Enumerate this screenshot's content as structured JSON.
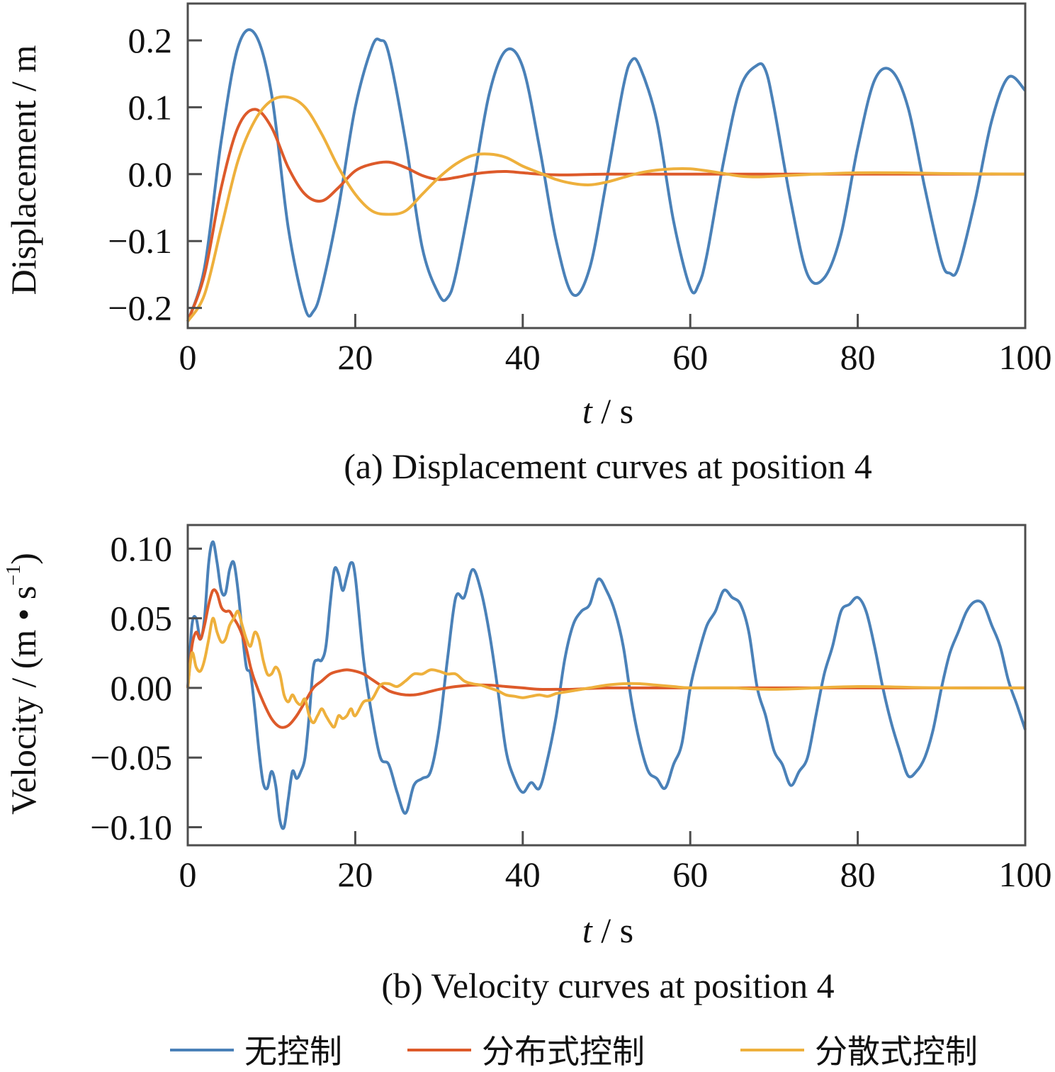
{
  "colors": {
    "no_control": "#4a81b8",
    "distributed": "#dd5a2a",
    "decentralized": "#eeb03c",
    "axis": "#4d4d4d"
  },
  "legend": [
    {
      "key": "no_control",
      "label": "无控制"
    },
    {
      "key": "distributed",
      "label": "分布式控制"
    },
    {
      "key": "decentralized",
      "label": "分散式控制"
    }
  ],
  "chart_data": [
    {
      "id": "a",
      "type": "line",
      "caption": "(a)  Displacement curves at position 4",
      "xlabel_var": "t",
      "xlabel_unit": " / s",
      "ylabel": "Displacement / m",
      "xlim": [
        0,
        100
      ],
      "ylim": [
        -0.23,
        0.255
      ],
      "xticks": [
        0,
        20,
        40,
        60,
        80,
        100
      ],
      "xtick_labels": [
        "0",
        "20",
        "40",
        "60",
        "80",
        "100"
      ],
      "yticks": [
        -0.2,
        -0.1,
        0.0,
        0.1,
        0.2
      ],
      "ytick_labels": [
        "−0.2",
        "−0.1",
        "0.0",
        "0.1",
        "0.2"
      ],
      "grid": false,
      "series": [
        {
          "key": "no_control",
          "x": [
            0,
            2,
            4,
            6,
            8,
            10,
            12,
            14,
            15,
            16,
            18,
            20,
            22,
            23,
            24,
            26,
            28,
            30,
            31,
            32,
            34,
            36,
            38,
            40,
            42,
            44,
            46,
            48,
            50,
            52,
            53,
            54,
            56,
            58,
            60,
            61,
            62,
            64,
            66,
            68,
            69,
            70,
            72,
            74,
            76,
            78,
            80,
            82,
            84,
            86,
            88,
            90,
            91,
            92,
            94,
            96,
            98,
            100
          ],
          "y": [
            -0.22,
            -0.14,
            0.05,
            0.19,
            0.21,
            0.12,
            -0.08,
            -0.2,
            -0.205,
            -0.17,
            -0.05,
            0.1,
            0.19,
            0.2,
            0.18,
            0.05,
            -0.11,
            -0.18,
            -0.185,
            -0.15,
            -0.02,
            0.12,
            0.185,
            0.16,
            0.04,
            -0.1,
            -0.18,
            -0.14,
            -0.01,
            0.13,
            0.17,
            0.16,
            0.08,
            -0.07,
            -0.17,
            -0.165,
            -0.12,
            0.02,
            0.13,
            0.163,
            0.155,
            0.1,
            -0.04,
            -0.15,
            -0.155,
            -0.09,
            0.04,
            0.14,
            0.155,
            0.1,
            -0.02,
            -0.13,
            -0.148,
            -0.14,
            -0.04,
            0.08,
            0.145,
            0.125
          ]
        },
        {
          "key": "distributed",
          "x": [
            0,
            2,
            4,
            6,
            8,
            10,
            12,
            14,
            16,
            18,
            20,
            22,
            24,
            26,
            28,
            30,
            32,
            34,
            36,
            38,
            40,
            42,
            44,
            46,
            50,
            60,
            70,
            80,
            90,
            100
          ],
          "y": [
            -0.22,
            -0.15,
            -0.02,
            0.07,
            0.097,
            0.07,
            0.01,
            -0.03,
            -0.04,
            -0.02,
            0.005,
            0.015,
            0.018,
            0.01,
            -0.002,
            -0.008,
            -0.005,
            0,
            0.003,
            0.004,
            0.002,
            0,
            -0.001,
            -0.001,
            0,
            0,
            0,
            0,
            0,
            0
          ]
        },
        {
          "key": "decentralized",
          "x": [
            0,
            2,
            4,
            6,
            8,
            10,
            12,
            14,
            16,
            18,
            20,
            22,
            24,
            26,
            28,
            30,
            32,
            34,
            36,
            38,
            40,
            42,
            44,
            46,
            48,
            50,
            52,
            54,
            56,
            58,
            60,
            62,
            64,
            66,
            68,
            70,
            75,
            80,
            85,
            90,
            100
          ],
          "y": [
            -0.22,
            -0.18,
            -0.08,
            0.02,
            0.08,
            0.11,
            0.115,
            0.1,
            0.06,
            0.01,
            -0.03,
            -0.055,
            -0.06,
            -0.055,
            -0.03,
            -0.005,
            0.015,
            0.028,
            0.03,
            0.025,
            0.012,
            0.002,
            -0.008,
            -0.014,
            -0.016,
            -0.012,
            -0.005,
            0.002,
            0.006,
            0.008,
            0.008,
            0.005,
            0.001,
            -0.003,
            -0.004,
            -0.003,
            0,
            0.002,
            0.002,
            0.001,
            0
          ]
        }
      ]
    },
    {
      "id": "b",
      "type": "line",
      "caption": "(b)  Velocity curves at position 4",
      "xlabel_var": "t",
      "xlabel_unit": " / s",
      "ylabel_main": "Velocity / (m • s",
      "ylabel_sup": "−1",
      "ylabel_close": ")",
      "xlim": [
        0,
        100
      ],
      "ylim": [
        -0.113,
        0.117
      ],
      "xticks": [
        0,
        20,
        40,
        60,
        80,
        100
      ],
      "xtick_labels": [
        "0",
        "20",
        "40",
        "60",
        "80",
        "100"
      ],
      "yticks": [
        -0.1,
        -0.05,
        0.0,
        0.05,
        0.1
      ],
      "ytick_labels": [
        "−0.10",
        "−0.05",
        "0.00",
        "0.05",
        "0.10"
      ],
      "grid": false,
      "series": [
        {
          "key": "no_control",
          "x": [
            0,
            0.5,
            1,
            1.5,
            2,
            2.5,
            3,
            3.5,
            4,
            4.5,
            5,
            5.5,
            6,
            6.5,
            7,
            7.5,
            8,
            8.5,
            9,
            9.5,
            10,
            10.5,
            11,
            11.5,
            12,
            12.5,
            13,
            13.5,
            14,
            14.5,
            15,
            15.5,
            16,
            16.5,
            17,
            17.5,
            18,
            18.5,
            19,
            19.5,
            20,
            21,
            22,
            23,
            24,
            25,
            26,
            27,
            28,
            29,
            30,
            31,
            32,
            33,
            34,
            35,
            36,
            37,
            38,
            39,
            40,
            41,
            42,
            43,
            44,
            45,
            46,
            47,
            48,
            49,
            50,
            51,
            52,
            53,
            54,
            55,
            56,
            57,
            58,
            59,
            60,
            61,
            62,
            63,
            64,
            65,
            66,
            67,
            68,
            69,
            70,
            71,
            72,
            73,
            74,
            75,
            76,
            77,
            78,
            79,
            80,
            81,
            82,
            83,
            84,
            85,
            86,
            87,
            88,
            89,
            90,
            91,
            92,
            93,
            94,
            95,
            96,
            97,
            98,
            99,
            100
          ],
          "y": [
            0,
            0.045,
            0.05,
            0.035,
            0.05,
            0.09,
            0.105,
            0.09,
            0.07,
            0.068,
            0.085,
            0.09,
            0.07,
            0.04,
            0.015,
            0.01,
            -0.015,
            -0.045,
            -0.068,
            -0.072,
            -0.06,
            -0.07,
            -0.095,
            -0.1,
            -0.08,
            -0.06,
            -0.065,
            -0.06,
            -0.05,
            -0.02,
            0.015,
            0.02,
            0.02,
            0.03,
            0.06,
            0.085,
            0.082,
            0.07,
            0.08,
            0.09,
            0.08,
            0.02,
            -0.02,
            -0.05,
            -0.055,
            -0.075,
            -0.09,
            -0.07,
            -0.065,
            -0.06,
            -0.03,
            0.02,
            0.065,
            0.065,
            0.085,
            0.07,
            0.04,
            0.0,
            -0.045,
            -0.065,
            -0.075,
            -0.068,
            -0.072,
            -0.05,
            -0.02,
            0.02,
            0.045,
            0.055,
            0.06,
            0.078,
            0.07,
            0.055,
            0.03,
            -0.01,
            -0.04,
            -0.06,
            -0.065,
            -0.072,
            -0.055,
            -0.04,
            0.0,
            0.025,
            0.045,
            0.055,
            0.07,
            0.065,
            0.06,
            0.04,
            0.0,
            -0.02,
            -0.045,
            -0.055,
            -0.07,
            -0.06,
            -0.05,
            -0.02,
            0.01,
            0.03,
            0.055,
            0.06,
            0.065,
            0.055,
            0.03,
            0.0,
            -0.025,
            -0.045,
            -0.063,
            -0.06,
            -0.05,
            -0.03,
            0.0,
            0.025,
            0.04,
            0.055,
            0.062,
            0.06,
            0.045,
            0.03,
            0.005,
            -0.012,
            -0.03
          ]
        },
        {
          "key": "distributed",
          "x": [
            0,
            0.5,
            1,
            1.5,
            2,
            2.5,
            3,
            3.5,
            4,
            4.5,
            5,
            5.5,
            6,
            6.5,
            7,
            7.5,
            8,
            9,
            10,
            11,
            12,
            13,
            14,
            15,
            16,
            17,
            18,
            19,
            20,
            21,
            22,
            23,
            24,
            25,
            26,
            27,
            28,
            30,
            32,
            34,
            36,
            38,
            40,
            42,
            44,
            46,
            50,
            60,
            70,
            80,
            90,
            100
          ],
          "y": [
            0,
            0.03,
            0.04,
            0.035,
            0.045,
            0.06,
            0.07,
            0.068,
            0.058,
            0.055,
            0.055,
            0.05,
            0.045,
            0.038,
            0.028,
            0.015,
            0.005,
            -0.01,
            -0.022,
            -0.028,
            -0.027,
            -0.02,
            -0.01,
            0.0,
            0.005,
            0.01,
            0.012,
            0.013,
            0.012,
            0.01,
            0.006,
            0.002,
            -0.002,
            -0.004,
            -0.005,
            -0.005,
            -0.004,
            -0.001,
            0.001,
            0.002,
            0.002,
            0.001,
            0,
            -0.001,
            -0.001,
            -0.001,
            0,
            0,
            0,
            0,
            0,
            0
          ]
        },
        {
          "key": "decentralized",
          "x": [
            0,
            0.5,
            1,
            1.5,
            2,
            2.5,
            3,
            3.5,
            4,
            4.5,
            5,
            5.5,
            6,
            6.5,
            7,
            7.5,
            8,
            8.5,
            9,
            9.5,
            10,
            10.5,
            11,
            11.5,
            12,
            12.5,
            13,
            13.5,
            14,
            14.5,
            15,
            15.5,
            16,
            16.5,
            17,
            17.5,
            18,
            18.5,
            19,
            19.5,
            20,
            21,
            22,
            23,
            24,
            25,
            26,
            27,
            28,
            29,
            30,
            31,
            32,
            33,
            34,
            35,
            36,
            37,
            38,
            39,
            40,
            41,
            42,
            43,
            44,
            45,
            46,
            47,
            48,
            50,
            52,
            54,
            56,
            58,
            60,
            65,
            70,
            80,
            90,
            100
          ],
          "y": [
            0,
            0.025,
            0.015,
            0.012,
            0.02,
            0.035,
            0.05,
            0.04,
            0.033,
            0.035,
            0.045,
            0.05,
            0.055,
            0.045,
            0.035,
            0.03,
            0.04,
            0.035,
            0.02,
            0.01,
            0.01,
            0.015,
            0.01,
            -0.005,
            -0.01,
            -0.005,
            -0.01,
            -0.012,
            -0.008,
            -0.02,
            -0.025,
            -0.02,
            -0.015,
            -0.02,
            -0.025,
            -0.028,
            -0.02,
            -0.022,
            -0.02,
            -0.015,
            -0.02,
            -0.01,
            -0.008,
            0.002,
            0.003,
            0.001,
            0.005,
            0.01,
            0.01,
            0.013,
            0.012,
            0.01,
            0.01,
            0.005,
            0.003,
            0.002,
            0.0,
            -0.002,
            -0.005,
            -0.006,
            -0.007,
            -0.006,
            -0.005,
            -0.006,
            -0.004,
            -0.003,
            -0.002,
            -0.001,
            0.0,
            0.002,
            0.003,
            0.003,
            0.002,
            0.001,
            0.0,
            0.0,
            -0.001,
            0.001,
            0,
            0
          ]
        }
      ]
    }
  ]
}
